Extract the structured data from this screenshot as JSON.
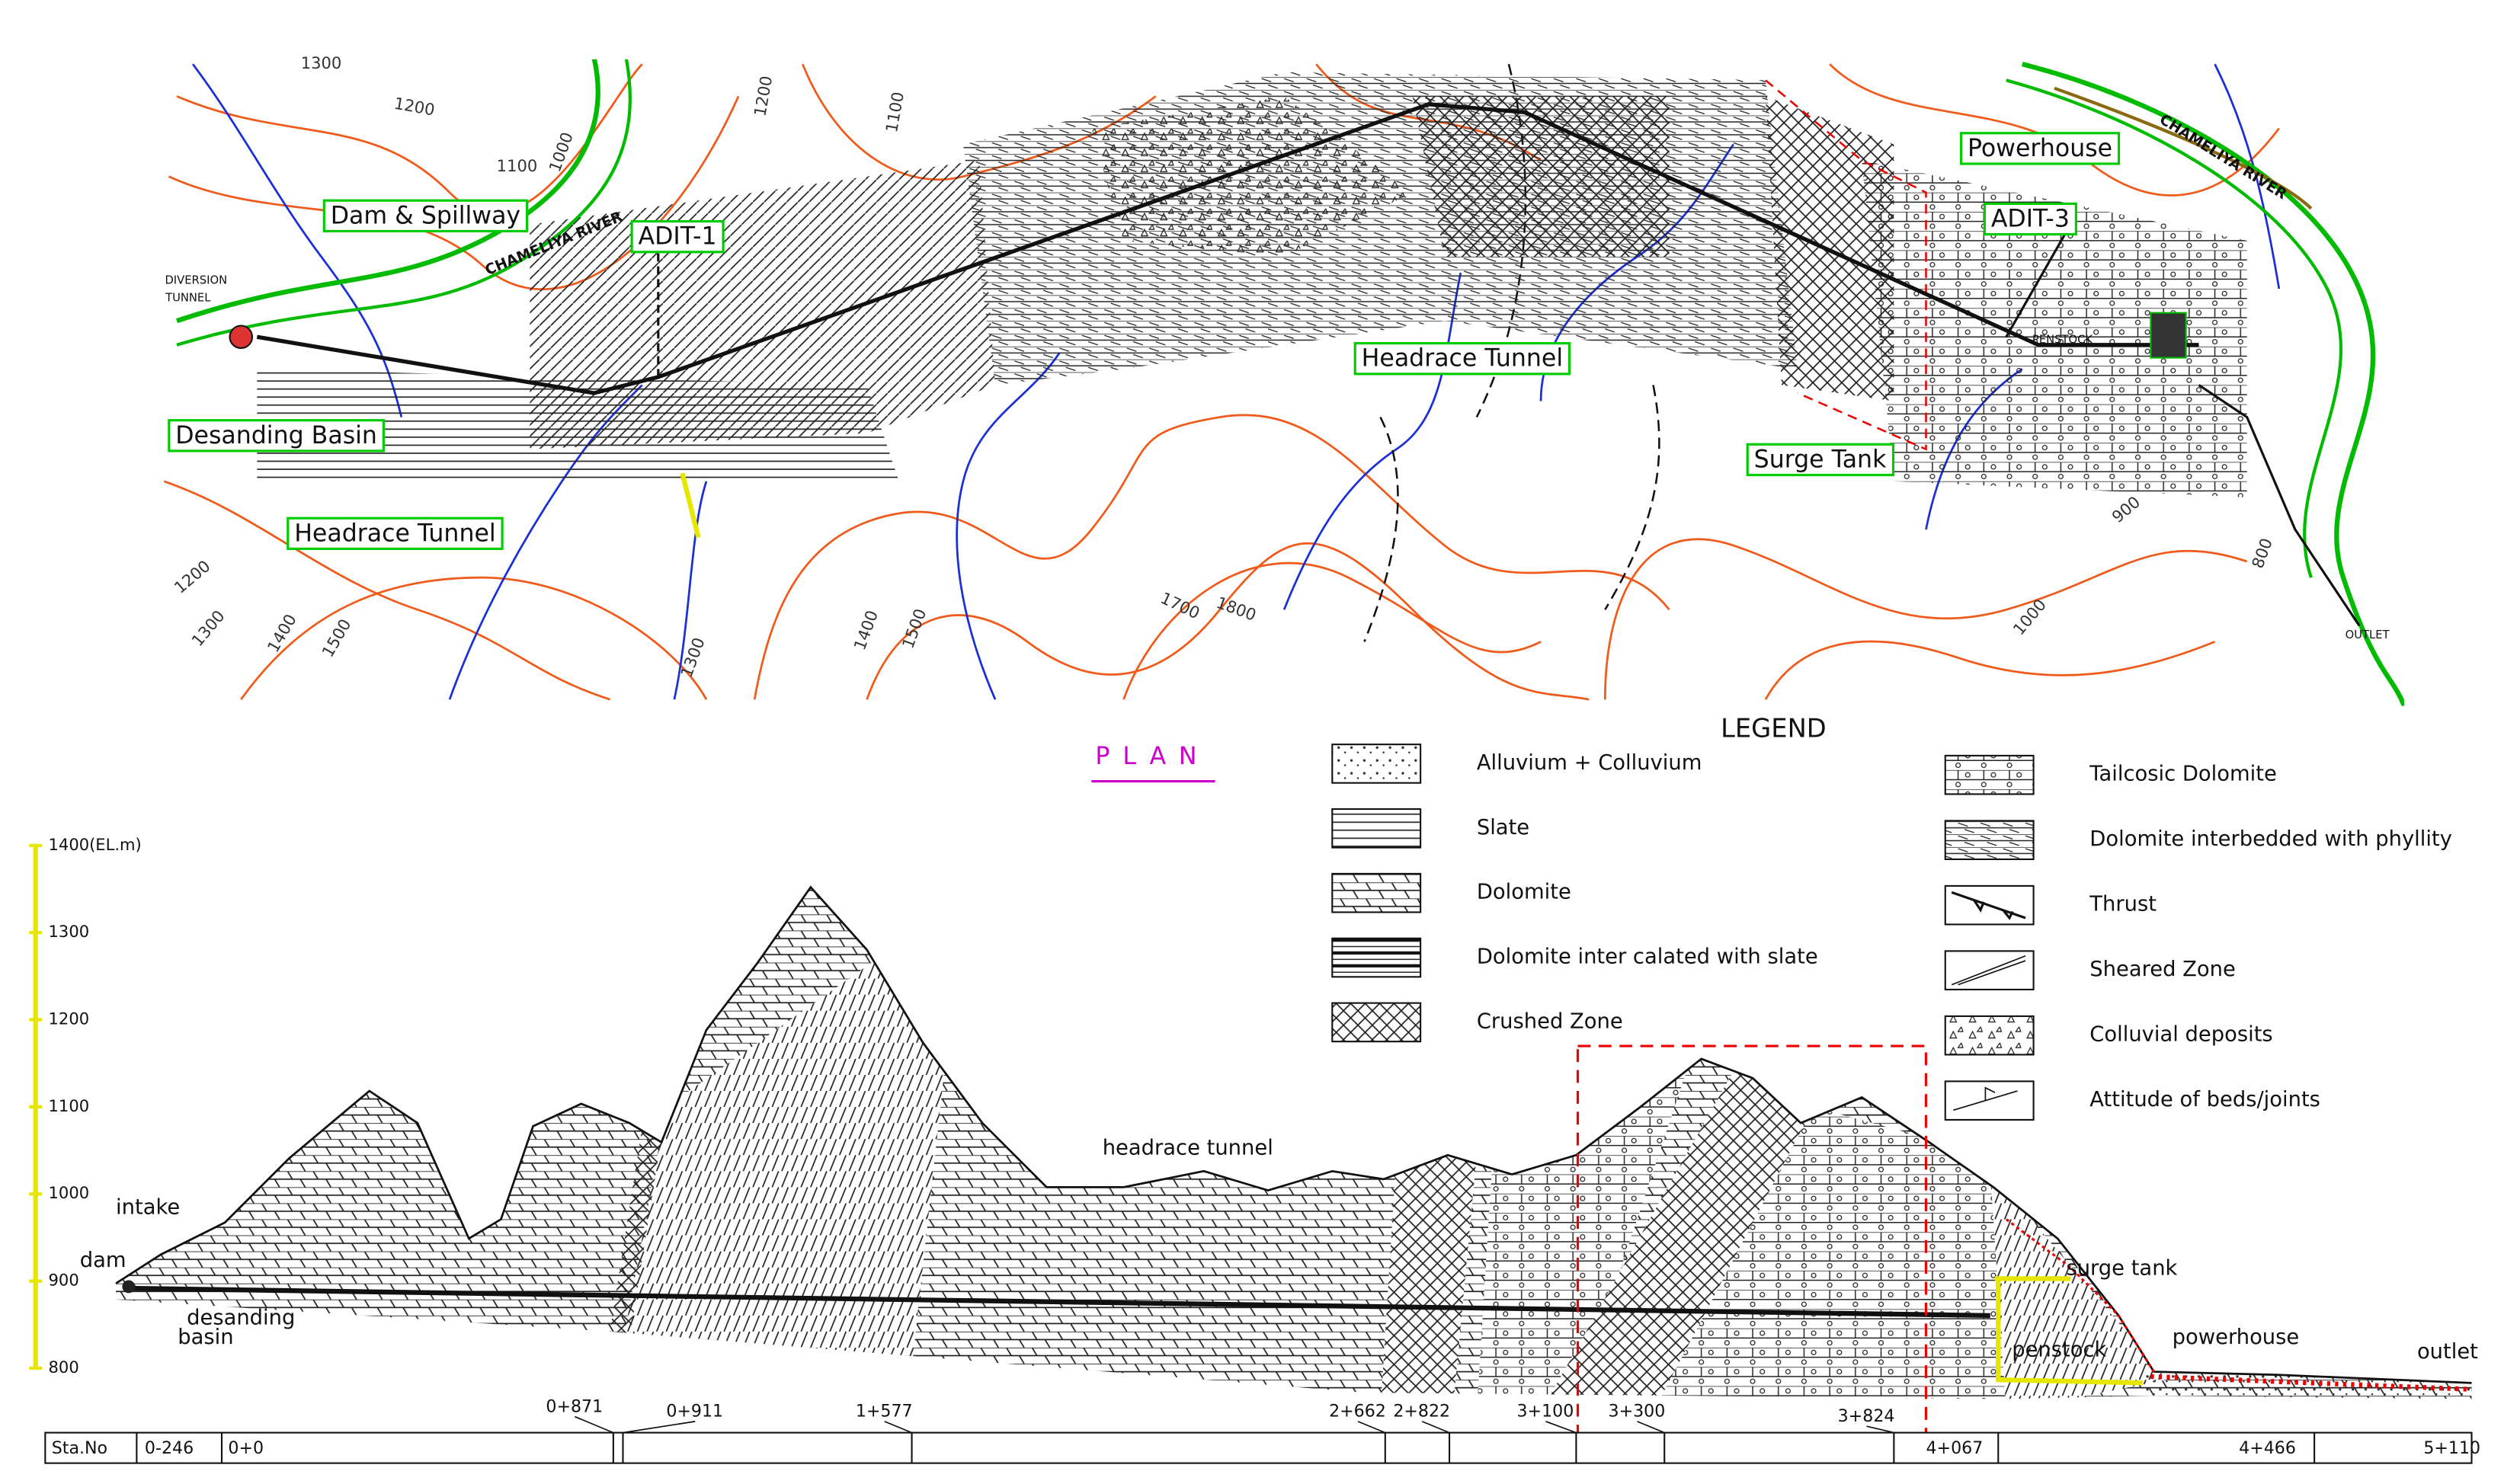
{
  "plan": {
    "caption": "PLAN",
    "boxed_labels": [
      "Dam & Spillway",
      "Desanding Basin",
      "Headrace Tunnel",
      "ADIT-1",
      "Headrace Tunnel",
      "Surge Tank",
      "Powerhouse",
      "ADIT-3"
    ],
    "river_labels": [
      "CHAMELIYA RIVER",
      "CHAMELIYA RIVER"
    ],
    "small_labels": [
      "DIVERSION",
      "TUNNEL",
      "PENSTOCK",
      "OUTLET"
    ],
    "contour_labels": [
      "1300",
      "1200",
      "1100",
      "1000",
      "1200",
      "1100",
      "1200",
      "1300",
      "1400",
      "1500",
      "1300",
      "1400",
      "1500",
      "1700",
      "1800",
      "1000",
      "900",
      "800"
    ]
  },
  "legend": {
    "title": "LEGEND",
    "items": [
      "Alluvium + Colluvium",
      "Slate",
      "Dolomite",
      "Dolomite inter calated with slate",
      "Crushed Zone",
      "Tailcosic Dolomite",
      "Dolomite interbedded with phyllity",
      "Thrust",
      "Sheared Zone",
      "Colluvial deposits",
      "Attitude of beds/joints"
    ]
  },
  "profile": {
    "elevations": [
      "1400(EL.m)",
      "1300",
      "1200",
      "1100",
      "1000",
      "900",
      "800"
    ],
    "labels": [
      "dam",
      "intake",
      "desanding",
      "basin",
      "headrace tunnel",
      "surge tank",
      "penstock",
      "powerhouse",
      "outlet"
    ],
    "stations": {
      "header": "Sta.No",
      "labels": [
        "0-246",
        "0+0",
        "0+871",
        "0+911",
        "1+577",
        "2+662",
        "2+822",
        "3+100",
        "3+300",
        "3+824",
        "4+067",
        "4+466",
        "5+110"
      ]
    }
  }
}
